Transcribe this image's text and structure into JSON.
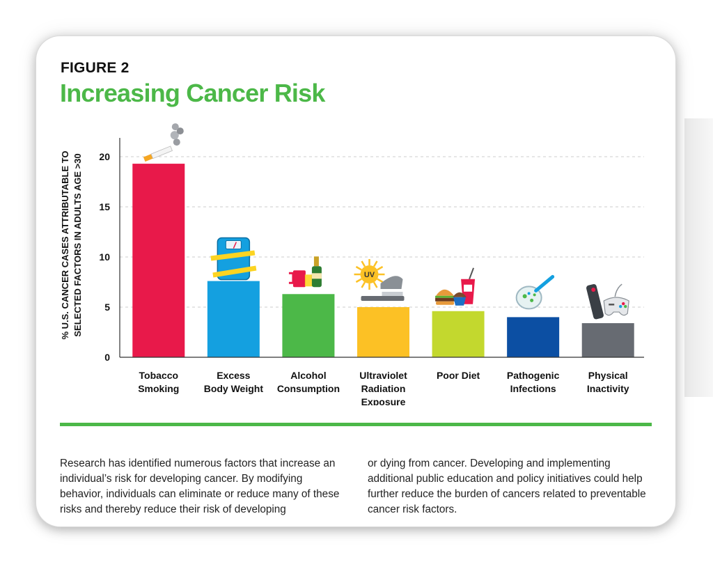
{
  "figure": {
    "label": "FIGURE 2",
    "title": "Increasing Cancer Risk"
  },
  "chart_data": {
    "type": "bar",
    "title": "Increasing Cancer Risk",
    "ylabel_lines": [
      "% U.S. CANCER CASES ATTRIBUTABLE TO",
      "SELECTED FACTORS IN ADULTS AGE >30"
    ],
    "ylabel": "% U.S. CANCER CASES ATTRIBUTABLE TO SELECTED FACTORS IN ADULTS AGE >30",
    "xlabel": "",
    "ylim": [
      0,
      22
    ],
    "yticks": [
      0,
      5,
      10,
      15,
      20
    ],
    "grid": true,
    "categories": [
      {
        "lines": [
          "Tobacco",
          "Smoking"
        ]
      },
      {
        "lines": [
          "Excess",
          "Body Weight"
        ]
      },
      {
        "lines": [
          "Alcohol",
          "Consumption"
        ]
      },
      {
        "lines": [
          "Ultraviolet",
          "Radiation",
          "Exposure"
        ]
      },
      {
        "lines": [
          "Poor Diet"
        ]
      },
      {
        "lines": [
          "Pathogenic",
          "Infections"
        ]
      },
      {
        "lines": [
          "Physical",
          "Inactivity"
        ]
      }
    ],
    "values": [
      19.3,
      7.6,
      6.3,
      5.0,
      4.6,
      4.0,
      3.4
    ],
    "colors": [
      "#e8194a",
      "#14a0e0",
      "#4cb848",
      "#fcc125",
      "#c3d82e",
      "#0c4fa3",
      "#676b72"
    ],
    "icons": [
      "cigarette-icon",
      "scale-icon",
      "alcohol-icon",
      "tanning-bed-icon",
      "fast-food-icon",
      "petri-dish-icon",
      "gaming-icon"
    ],
    "icon_labels": {
      "uv": "UV"
    }
  },
  "body": {
    "paragraph_left": "Research has identified numerous factors that increase an individual’s risk for developing cancer. By modifying behavior, individuals can eliminate or reduce many of these risks and thereby reduce their risk of developing",
    "paragraph_right": "or dying from cancer. Developing and implementing additional public education and policy initiatives could help further reduce the burden of cancers related to preventable cancer risk factors."
  },
  "colors": {
    "accent_green": "#4cb848",
    "grid": "#cccccc",
    "axis": "#333333"
  }
}
